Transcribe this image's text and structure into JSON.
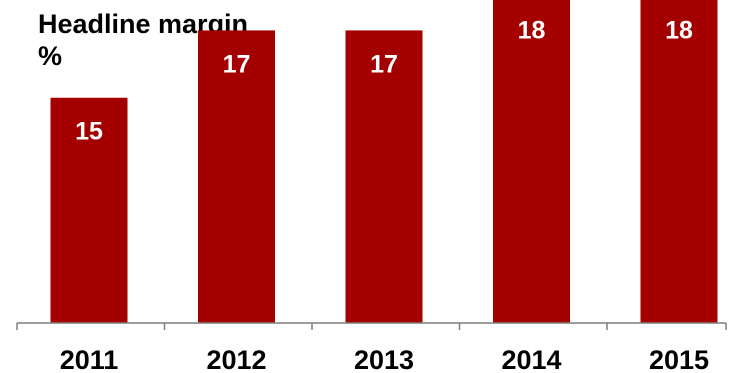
{
  "chart_data": {
    "type": "bar",
    "title": "Headline margin",
    "unit": "%",
    "categories": [
      "2011",
      "2012",
      "2013",
      "2014",
      "2015"
    ],
    "values": [
      15,
      17,
      17,
      18,
      18
    ],
    "data_labels": [
      "15",
      "17",
      "17",
      "18",
      "18"
    ],
    "bar_color": "#a50000",
    "axis_color": "#7f7f7f",
    "grid": false,
    "legend": "none"
  }
}
